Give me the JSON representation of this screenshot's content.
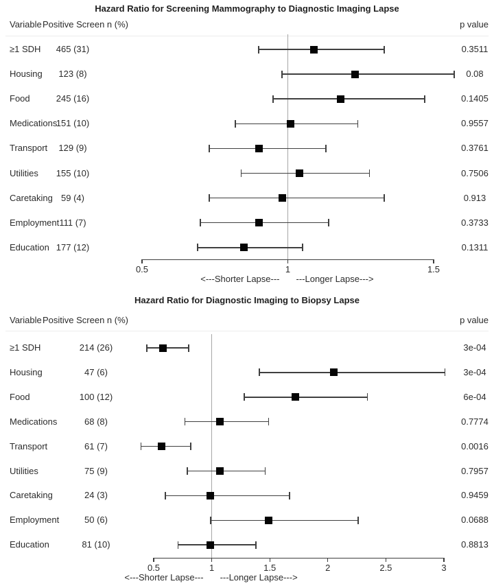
{
  "page": {
    "background": "#ffffff",
    "text_color": "#2b2b2b",
    "marker_color": "#050505",
    "ref_line_color": "#a6a6a6"
  },
  "chart_data": [
    {
      "type": "forest",
      "title": "Hazard Ratio for Screening Mammography to Diagnostic Imaging Lapse",
      "col_headers": {
        "variable": "Variable",
        "n": "Positive Screen n (%)",
        "p": "p value"
      },
      "x_axis": {
        "ticks": [
          "0.5",
          "1",
          "1.5"
        ],
        "values": [
          0.5,
          1,
          1.5
        ],
        "range": [
          0.5,
          1.5
        ],
        "ref_line": 1,
        "scale": "hazard ratio"
      },
      "direction_labels": {
        "left": "<---Shorter Lapse---",
        "right": "---Longer Lapse--->"
      },
      "rows": [
        {
          "variable": "≥1 SDH",
          "n": "465 (31)",
          "hr": 1.09,
          "ci_low": 0.9,
          "ci_high": 1.33,
          "p": "0.3511"
        },
        {
          "variable": "Housing",
          "n": "123 (8)",
          "hr": 1.23,
          "ci_low": 0.98,
          "ci_high": 1.57,
          "p": "0.08"
        },
        {
          "variable": "Food",
          "n": "245 (16)",
          "hr": 1.18,
          "ci_low": 0.95,
          "ci_high": 1.47,
          "p": "0.1405"
        },
        {
          "variable": "Medications",
          "n": "151 (10)",
          "hr": 1.01,
          "ci_low": 0.82,
          "ci_high": 1.24,
          "p": "0.9557"
        },
        {
          "variable": "Transport",
          "n": "129 (9)",
          "hr": 0.9,
          "ci_low": 0.73,
          "ci_high": 1.13,
          "p": "0.3761"
        },
        {
          "variable": "Utilities",
          "n": "155 (10)",
          "hr": 1.04,
          "ci_low": 0.84,
          "ci_high": 1.28,
          "p": "0.7506"
        },
        {
          "variable": "Caretaking",
          "n": "59 (4)",
          "hr": 0.98,
          "ci_low": 0.73,
          "ci_high": 1.33,
          "p": "0.913"
        },
        {
          "variable": "Employment",
          "n": "111 (7)",
          "hr": 0.9,
          "ci_low": 0.7,
          "ci_high": 1.14,
          "p": "0.3733"
        },
        {
          "variable": "Education",
          "n": "177 (12)",
          "hr": 0.85,
          "ci_low": 0.69,
          "ci_high": 1.05,
          "p": "0.1311"
        }
      ]
    },
    {
      "type": "forest",
      "title": "Hazard Ratio for Diagnostic Imaging to Biopsy Lapse",
      "col_headers": {
        "variable": "Variable",
        "n": "Positive Screen n (%)",
        "p": "p value"
      },
      "x_axis": {
        "ticks": [
          "0.5",
          "1",
          "1.5",
          "2",
          "2.5",
          "3"
        ],
        "values": [
          0.5,
          1,
          1.5,
          2,
          2.5,
          3
        ],
        "range": [
          0.5,
          3
        ],
        "ref_line": 1,
        "scale": "hazard ratio"
      },
      "direction_labels": {
        "left": "<---Shorter Lapse---",
        "right": "---Longer Lapse--->"
      },
      "rows": [
        {
          "variable": "≥1 SDH",
          "n": "214 (26)",
          "hr": 0.58,
          "ci_low": 0.44,
          "ci_high": 0.8,
          "p": "3e-04"
        },
        {
          "variable": "Housing",
          "n": "47 (6)",
          "hr": 2.05,
          "ci_low": 1.41,
          "ci_high": 3.01,
          "p": "3e-04"
        },
        {
          "variable": "Food",
          "n": "100 (12)",
          "hr": 1.72,
          "ci_low": 1.28,
          "ci_high": 2.34,
          "p": "6e-04"
        },
        {
          "variable": "Medications",
          "n": "68 (8)",
          "hr": 1.07,
          "ci_low": 0.77,
          "ci_high": 1.49,
          "p": "0.7774"
        },
        {
          "variable": "Transport",
          "n": "61 (7)",
          "hr": 0.57,
          "ci_low": 0.39,
          "ci_high": 0.82,
          "p": "0.0016"
        },
        {
          "variable": "Utilities",
          "n": "75 (9)",
          "hr": 1.07,
          "ci_low": 0.79,
          "ci_high": 1.46,
          "p": "0.7957"
        },
        {
          "variable": "Caretaking",
          "n": "24 (3)",
          "hr": 0.99,
          "ci_low": 0.6,
          "ci_high": 1.67,
          "p": "0.9459"
        },
        {
          "variable": "Employment",
          "n": "50 (6)",
          "hr": 1.49,
          "ci_low": 0.99,
          "ci_high": 2.26,
          "p": "0.0688"
        },
        {
          "variable": "Education",
          "n": "81 (10)",
          "hr": 0.99,
          "ci_low": 0.71,
          "ci_high": 1.38,
          "p": "0.8813"
        }
      ]
    }
  ]
}
